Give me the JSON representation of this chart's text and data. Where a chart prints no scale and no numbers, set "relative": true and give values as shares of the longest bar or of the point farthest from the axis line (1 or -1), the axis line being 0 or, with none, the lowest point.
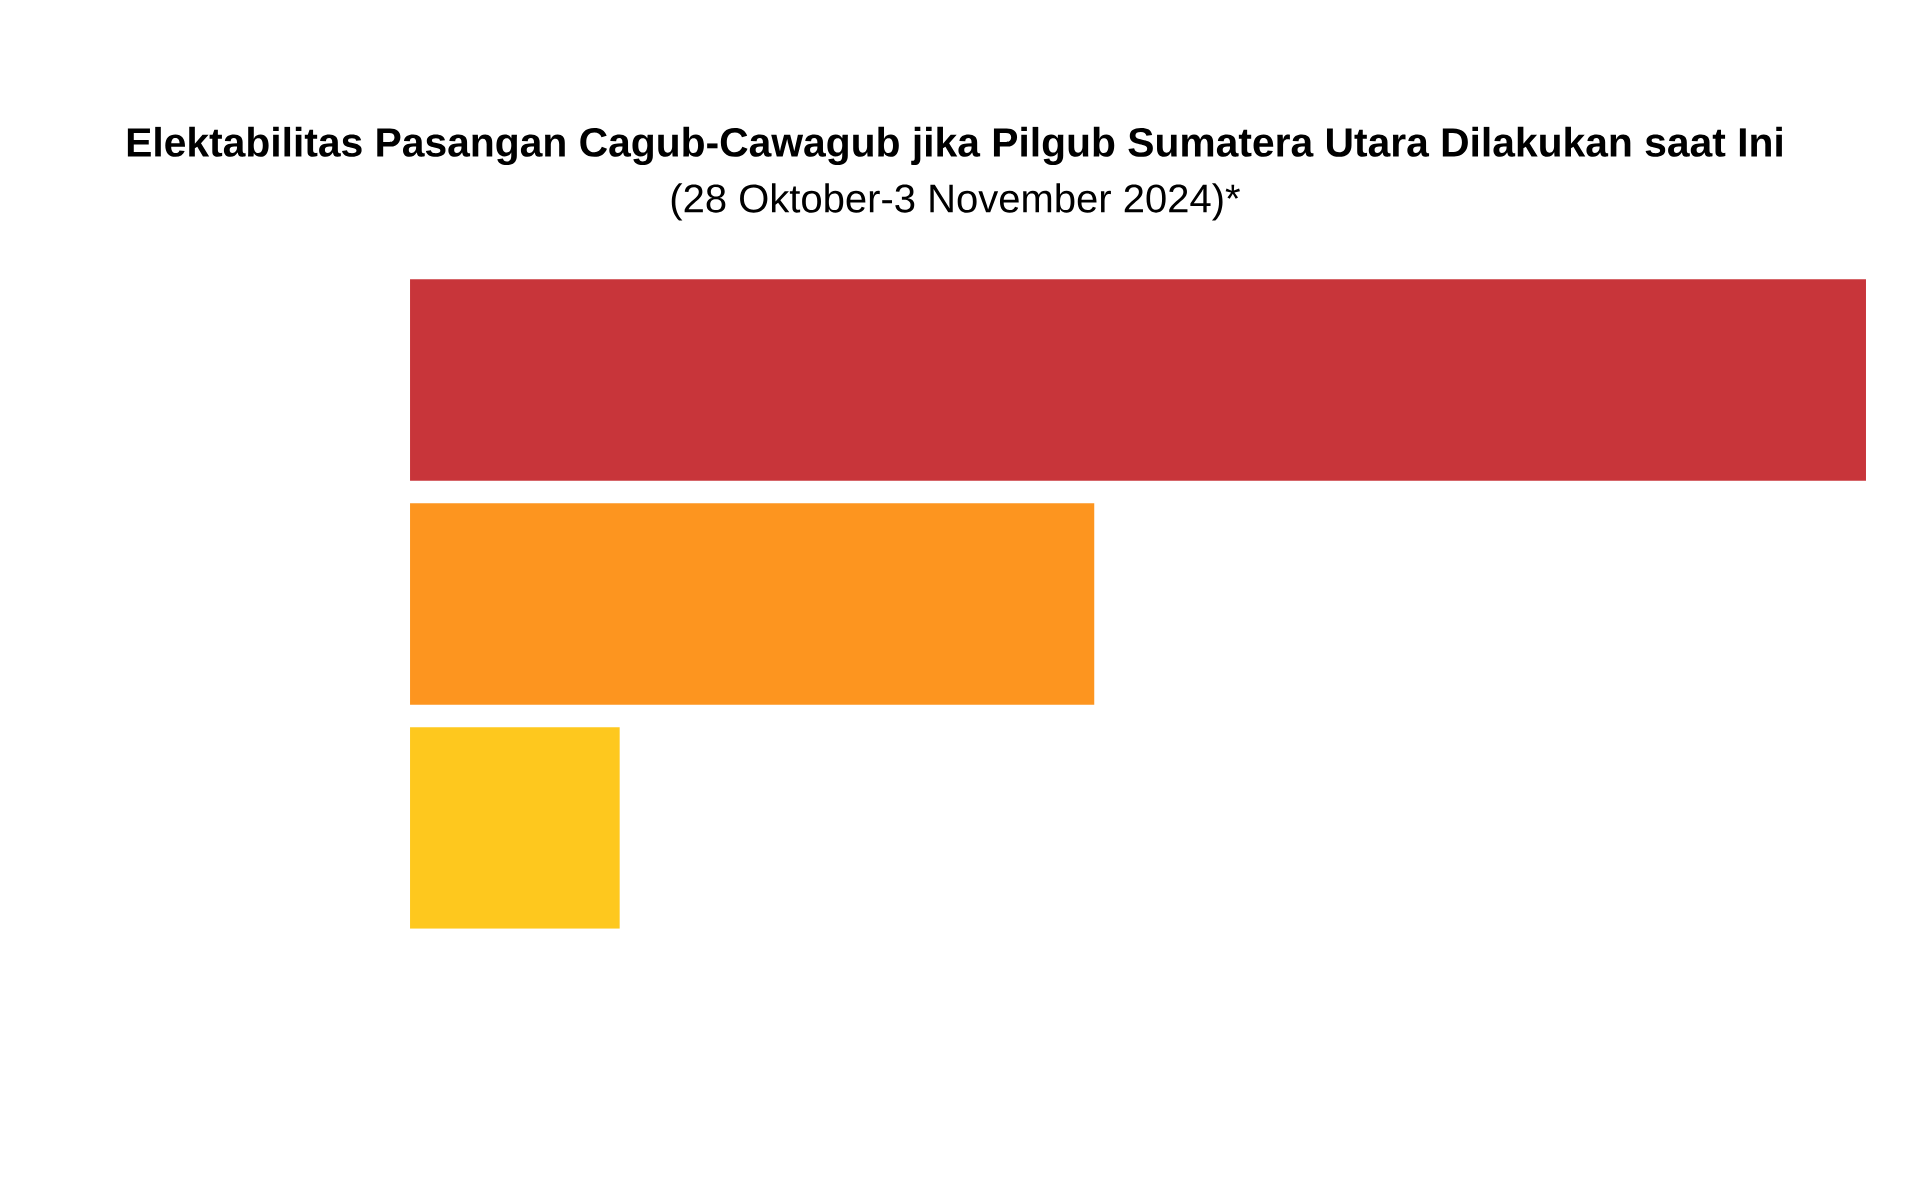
{
  "chart_data": {
    "type": "bar",
    "orientation": "horizontal",
    "relative": true,
    "title": "Elektabilitas Pasangan Cagub-Cawagub jika Pilgub Sumatera Utara Dilakukan saat Ini",
    "subtitle": "(28 Oktober-3 November 2024)*",
    "categories": [
      null,
      null,
      null
    ],
    "values": [
      1,
      0.47,
      0.144
    ],
    "colors": [
      "#c8353a",
      "#fd951f",
      "#fec81e"
    ]
  }
}
